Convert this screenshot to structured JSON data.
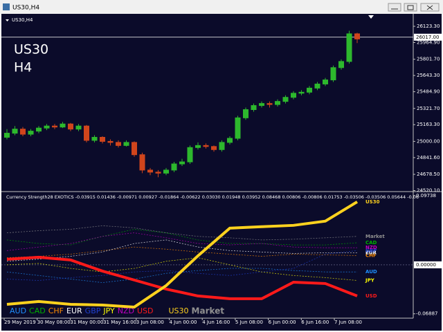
{
  "window": {
    "title": "US30,H4"
  },
  "chart_data": [
    {
      "type": "candlestick",
      "title": "US30,H4",
      "annotations": [
        "US30",
        "H4"
      ],
      "open": [
        25040,
        25080,
        25120,
        25070,
        25100,
        25130,
        25150,
        25140,
        25170,
        25120,
        25150,
        25010,
        25040,
        25000,
        24990,
        24960,
        24990,
        24870,
        24720,
        24700,
        24690,
        24720,
        24780,
        24800,
        24940,
        24960,
        24950,
        24920,
        24990,
        25030,
        25230,
        25310,
        25350,
        25370,
        25360,
        25390,
        25430,
        25470,
        25480,
        25520,
        25560,
        25600,
        25720,
        25780,
        26050
      ],
      "high": [
        25120,
        25150,
        25140,
        25120,
        25150,
        25170,
        25170,
        25190,
        25180,
        25170,
        25160,
        25060,
        25050,
        25020,
        25010,
        25010,
        25000,
        24890,
        24740,
        24720,
        24740,
        24800,
        24830,
        24960,
        24990,
        24980,
        24960,
        25010,
        25050,
        25250,
        25330,
        25370,
        25390,
        25390,
        25410,
        25450,
        25490,
        25500,
        25540,
        25580,
        25620,
        25740,
        25800,
        26080,
        26060
      ],
      "low": [
        25020,
        25060,
        25050,
        25050,
        25080,
        25110,
        25120,
        25130,
        25100,
        25100,
        24990,
        24990,
        24980,
        24960,
        24940,
        24950,
        24850,
        24690,
        24670,
        24650,
        24670,
        24700,
        24760,
        24780,
        24920,
        24930,
        24900,
        24900,
        24970,
        25010,
        25210,
        25290,
        25330,
        25330,
        25340,
        25370,
        25410,
        25450,
        25460,
        25500,
        25540,
        25580,
        25700,
        25760,
        25960
      ],
      "close": [
        25080,
        25120,
        25070,
        25100,
        25130,
        25150,
        25140,
        25170,
        25120,
        25150,
        25010,
        25040,
        25000,
        24990,
        24960,
        24990,
        24870,
        24720,
        24700,
        24690,
        24720,
        24780,
        24800,
        24940,
        24960,
        24950,
        24920,
        24990,
        25030,
        25230,
        25310,
        25350,
        25370,
        25360,
        25390,
        25430,
        25470,
        25480,
        25520,
        25560,
        25600,
        25720,
        25780,
        26050,
        26000
      ],
      "up_color": "#2db82d",
      "down_color": "#d0451c",
      "ylim": [
        24510,
        26245
      ],
      "yticks": [
        {
          "value": 26123.3,
          "label": "26123.30"
        },
        {
          "value": 25964.9,
          "label": "25964.90"
        },
        {
          "value": 25801.7,
          "label": "25801.70"
        },
        {
          "value": 25643.3,
          "label": "25643.30"
        },
        {
          "value": 25484.9,
          "label": "25484.90"
        },
        {
          "value": 25321.7,
          "label": "25321.70"
        },
        {
          "value": 25163.3,
          "label": "25163.30"
        },
        {
          "value": 25000,
          "label": "25000.00"
        },
        {
          "value": 24841.6,
          "label": "24841.60"
        },
        {
          "value": 24678.5,
          "label": "24678.50"
        },
        {
          "value": 24520.1,
          "label": "24520.10"
        }
      ],
      "price_line": {
        "value": 26017,
        "label": "26017.00"
      }
    },
    {
      "type": "line",
      "title": "Currency Strength28 EXOTICS  -0.03915  0.01436  -0.00971  0.00927  -0.01864  -0.00622  0.03030  0.01948  0.03952  0.08468  0.00806  -0.00806  0.01753  -0.03506  -0.03506  0.05644  -0.06",
      "ylim": [
        -0.075,
        0.102
      ],
      "yticks": [
        0.09738,
        {
          "value": 0,
          "label": "0.00000"
        },
        -0.06887
      ],
      "series": [
        {
          "name": "AUD",
          "color": "#1e90ff",
          "values": [
            -0.01,
            -0.015,
            -0.02,
            -0.025,
            -0.02,
            -0.012,
            -0.008,
            -0.005,
            -0.005,
            -0.008,
            -0.01,
            -0.01
          ]
        },
        {
          "name": "CAD",
          "color": "#00b000",
          "values": [
            0.035,
            0.03,
            0.028,
            0.04,
            0.05,
            0.045,
            0.035,
            0.03,
            0.03,
            0.028,
            0.028,
            0.031
          ]
        },
        {
          "name": "CHF",
          "color": "#ff8c00",
          "values": [
            0.01,
            0.012,
            0.015,
            0.02,
            0.025,
            0.022,
            0.018,
            0.015,
            0.012,
            0.015,
            0.014,
            0.013
          ]
        },
        {
          "name": "EUR",
          "color": "#ffffff",
          "values": [
            0.005,
            0.008,
            0.012,
            0.018,
            0.03,
            0.035,
            0.025,
            0.02,
            0.018,
            0.016,
            0.017,
            0.017
          ]
        },
        {
          "name": "GBP",
          "color": "#2040d0",
          "values": [
            -0.02,
            -0.022,
            -0.018,
            -0.015,
            -0.01,
            -0.008,
            -0.012,
            -0.015,
            -0.01,
            -0.005,
            0.015,
            0.02
          ]
        },
        {
          "name": "JPY",
          "color": "#ffff00",
          "values": [
            0.0,
            0.002,
            -0.005,
            -0.01,
            -0.005,
            0.005,
            0.01,
            0.0,
            -0.01,
            -0.015,
            -0.018,
            -0.022
          ]
        },
        {
          "name": "NZD",
          "color": "#c000c0",
          "values": [
            0.02,
            0.025,
            0.03,
            0.04,
            0.045,
            0.038,
            0.03,
            0.028,
            0.03,
            0.025,
            0.024,
            0.024
          ]
        },
        {
          "name": "USD",
          "color": "#ff1a1a",
          "values": [
            0.0078,
            0.0107,
            0.0068,
            -0.0088,
            -0.0214,
            -0.0341,
            -0.0438,
            -0.0477,
            -0.0477,
            -0.0244,
            -0.0263,
            -0.0438
          ]
        },
        {
          "name": "US30",
          "color": "#ffd21e",
          "values": [
            -0.0555,
            -0.0516,
            -0.0555,
            -0.0565,
            -0.0594,
            -0.0292,
            0.0127,
            0.0516,
            0.0536,
            0.0555,
            0.0614,
            0.0886
          ]
        },
        {
          "name": "Market",
          "color": "#909090",
          "values": [
            0.045,
            0.048,
            0.05,
            0.055,
            0.052,
            0.045,
            0.04,
            0.038,
            0.035,
            0.036,
            0.038,
            0.04
          ]
        }
      ]
    }
  ],
  "time_axis": [
    "29 May 2019",
    "30 May 08:00",
    "31 May 00:00",
    "31 May 16:00",
    "3 Jun 08:00",
    "4 Jun 00:00",
    "4 Jun 16:00",
    "5 Jun 08:00",
    "6 Jun 00:00",
    "6 Jun 16:00",
    "7 Jun 08:00"
  ]
}
